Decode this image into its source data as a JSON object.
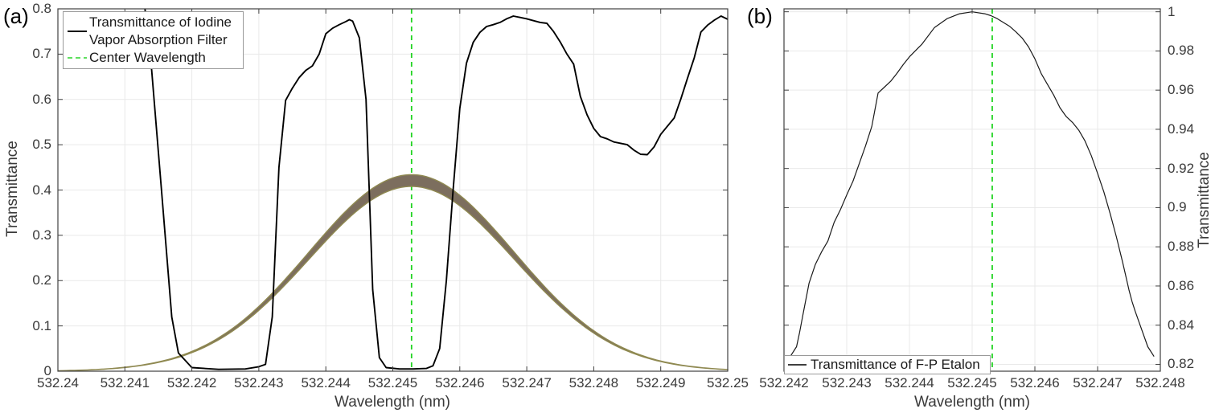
{
  "panels": {
    "a": {
      "tag": "(a)",
      "xlabel": "Wavelength (nm)",
      "ylabel": "Transmittance",
      "legend": [
        "Transmittance of Iodine",
        "Vapor Absorption Filter",
        "Center Wavelength"
      ]
    },
    "b": {
      "tag": "(b)",
      "xlabel": "Wavelength (nm)",
      "ylabel": "Transmittance",
      "legend": [
        "Transmittance of F-P Etalon"
      ]
    }
  },
  "colors": {
    "iodine_curve": "#000000",
    "etalon_curve": "#1a1a1a",
    "center_wavelength_green": "#22d422",
    "legend_green_sample": "#5fdf5f",
    "etalon_sample_gray": "#3f3f3f",
    "band_fill": "#7c6e5e",
    "band_edge": "#8f8951",
    "grid": "#e9e9e9",
    "axis": "#404040"
  },
  "chart_data": [
    {
      "type": "line",
      "panel": "(a)",
      "title": "",
      "xlabel": "Wavelength (nm)",
      "ylabel": "Transmittance",
      "xlim": [
        532.24,
        532.25
      ],
      "ylim": [
        0,
        0.8
      ],
      "grid": true,
      "legend_position": "top-left",
      "xticks": [
        532.24,
        532.241,
        532.242,
        532.243,
        532.244,
        532.245,
        532.246,
        532.247,
        532.248,
        532.249,
        532.25
      ],
      "xtick_labels": [
        "532.24",
        "532.241",
        "532.242",
        "532.243",
        "532.244",
        "532.245",
        "532.246",
        "532.247",
        "532.248",
        "532.249",
        "532.25"
      ],
      "yticks": [
        0,
        0.1,
        0.2,
        0.3,
        0.4,
        0.5,
        0.6,
        0.7,
        0.8
      ],
      "ytick_labels": [
        "0",
        "0.1",
        "0.2",
        "0.3",
        "0.4",
        "0.5",
        "0.6",
        "0.7",
        "0.8"
      ],
      "series": [
        {
          "name": "Center Wavelength",
          "type": "vline",
          "x": 532.24528,
          "color": "#22d422",
          "dash": [
            6,
            5
          ],
          "width": 1.8
        },
        {
          "name": "Laser spectral band (unlabeled)",
          "type": "gaussian-band",
          "center": 532.24528,
          "sigma": 0.00153,
          "peak_top": 0.434,
          "peak_bottom": 0.408,
          "fill": "#7c6e5e",
          "edge": "#8f8951"
        },
        {
          "name": "Transmittance of Iodine Vapor Absorption Filter",
          "type": "line",
          "color": "#000000",
          "width": 1.9,
          "points": [
            [
              532.2413,
              0.8
            ],
            [
              532.2414,
              0.665
            ],
            [
              532.24155,
              0.394
            ],
            [
              532.2417,
              0.12
            ],
            [
              532.2418,
              0.04
            ],
            [
              532.242,
              0.008
            ],
            [
              532.2424,
              0.004
            ],
            [
              532.2428,
              0.005
            ],
            [
              532.243,
              0.01
            ],
            [
              532.2431,
              0.015
            ],
            [
              532.2432,
              0.12
            ],
            [
              532.2433,
              0.45
            ],
            [
              532.2434,
              0.598
            ],
            [
              532.2435,
              0.625
            ],
            [
              532.2436,
              0.648
            ],
            [
              532.2437,
              0.664
            ],
            [
              532.2438,
              0.674
            ],
            [
              532.2439,
              0.7
            ],
            [
              532.244,
              0.745
            ],
            [
              532.2441,
              0.757
            ],
            [
              532.2442,
              0.765
            ],
            [
              532.2443,
              0.772
            ],
            [
              532.24435,
              0.776
            ],
            [
              532.2444,
              0.773
            ],
            [
              532.2445,
              0.736
            ],
            [
              532.2446,
              0.6
            ],
            [
              532.24465,
              0.394
            ],
            [
              532.2447,
              0.18
            ],
            [
              532.2448,
              0.03
            ],
            [
              532.2449,
              0.008
            ],
            [
              532.2451,
              0.005
            ],
            [
              532.2453,
              0.005
            ],
            [
              532.2455,
              0.006
            ],
            [
              532.2456,
              0.012
            ],
            [
              532.2457,
              0.05
            ],
            [
              532.2458,
              0.2
            ],
            [
              532.2459,
              0.4
            ],
            [
              532.246,
              0.58
            ],
            [
              532.2461,
              0.68
            ],
            [
              532.2462,
              0.726
            ],
            [
              532.2463,
              0.748
            ],
            [
              532.2464,
              0.761
            ],
            [
              532.2465,
              0.765
            ],
            [
              532.2466,
              0.77
            ],
            [
              532.2467,
              0.778
            ],
            [
              532.2468,
              0.784
            ],
            [
              532.2469,
              0.781
            ],
            [
              532.247,
              0.778
            ],
            [
              532.2471,
              0.774
            ],
            [
              532.2472,
              0.77
            ],
            [
              532.2473,
              0.768
            ],
            [
              532.2474,
              0.75
            ],
            [
              532.2475,
              0.727
            ],
            [
              532.2476,
              0.7
            ],
            [
              532.2477,
              0.678
            ],
            [
              532.2478,
              0.607
            ],
            [
              532.2479,
              0.566
            ],
            [
              532.248,
              0.536
            ],
            [
              532.2481,
              0.518
            ],
            [
              532.2482,
              0.513
            ],
            [
              532.2483,
              0.506
            ],
            [
              532.2485,
              0.5
            ],
            [
              532.2486,
              0.488
            ],
            [
              532.2487,
              0.479
            ],
            [
              532.2488,
              0.478
            ],
            [
              532.2489,
              0.495
            ],
            [
              532.249,
              0.523
            ],
            [
              532.2492,
              0.559
            ],
            [
              532.2493,
              0.601
            ],
            [
              532.2494,
              0.647
            ],
            [
              532.2495,
              0.692
            ],
            [
              532.2496,
              0.749
            ],
            [
              532.2497,
              0.764
            ],
            [
              532.2498,
              0.775
            ],
            [
              532.2499,
              0.784
            ],
            [
              532.25,
              0.777
            ]
          ]
        }
      ]
    },
    {
      "type": "line",
      "panel": "(b)",
      "title": "",
      "xlabel": "Wavelength (nm)",
      "ylabel": "Transmittance",
      "xlim": [
        532.242,
        532.248
      ],
      "ylim": [
        0.8165,
        1.0015
      ],
      "grid": true,
      "legend_position": "bottom-left",
      "xticks": [
        532.242,
        532.243,
        532.244,
        532.245,
        532.246,
        532.247,
        532.248
      ],
      "xtick_labels": [
        "532.242",
        "532.243",
        "532.244",
        "532.245",
        "532.246",
        "532.247",
        "532.248"
      ],
      "yticks": [
        0.82,
        0.84,
        0.86,
        0.88,
        0.9,
        0.92,
        0.94,
        0.96,
        0.98,
        1
      ],
      "ytick_labels": [
        "0.82",
        "0.84",
        "0.86",
        "0.88",
        "0.9",
        "0.92",
        "0.94",
        "0.96",
        "0.98",
        "1"
      ],
      "series": [
        {
          "name": "Transmittance of F-P Etalon",
          "type": "line",
          "color": "#1a1a1a",
          "width": 1.2,
          "points": [
            [
              532.2421,
              0.824
            ],
            [
              532.2422,
              0.829
            ],
            [
              532.24225,
              0.8365
            ],
            [
              532.2423,
              0.845
            ],
            [
              532.2424,
              0.8615
            ],
            [
              532.2425,
              0.871
            ],
            [
              532.2426,
              0.8775
            ],
            [
              532.2427,
              0.883
            ],
            [
              532.2428,
              0.8925
            ],
            [
              532.2429,
              0.899
            ],
            [
              532.243,
              0.9065
            ],
            [
              532.2431,
              0.9135
            ],
            [
              532.2432,
              0.9225
            ],
            [
              532.2433,
              0.9315
            ],
            [
              532.2434,
              0.9415
            ],
            [
              532.2435,
              0.9585
            ],
            [
              532.2436,
              0.9615
            ],
            [
              532.2437,
              0.9645
            ],
            [
              532.2438,
              0.9685
            ],
            [
              532.2439,
              0.973
            ],
            [
              532.244,
              0.977
            ],
            [
              532.2442,
              0.9835
            ],
            [
              532.2444,
              0.992
            ],
            [
              532.2446,
              0.9965
            ],
            [
              532.2448,
              0.999
            ],
            [
              532.245,
              1.0
            ],
            [
              532.2452,
              0.999
            ],
            [
              532.2453,
              0.998
            ],
            [
              532.2454,
              0.9965
            ],
            [
              532.2456,
              0.9925
            ],
            [
              532.2457,
              0.9897
            ],
            [
              532.2458,
              0.9865
            ],
            [
              532.2459,
              0.982
            ],
            [
              532.246,
              0.976
            ],
            [
              532.2461,
              0.9685
            ],
            [
              532.2462,
              0.963
            ],
            [
              532.2463,
              0.9575
            ],
            [
              532.2464,
              0.951
            ],
            [
              532.2465,
              0.9465
            ],
            [
              532.2466,
              0.9435
            ],
            [
              532.2467,
              0.9395
            ],
            [
              532.2468,
              0.934
            ],
            [
              532.2469,
              0.9265
            ],
            [
              532.247,
              0.9175
            ],
            [
              532.2471,
              0.908
            ],
            [
              532.2472,
              0.897
            ],
            [
              532.2473,
              0.885
            ],
            [
              532.2474,
              0.872
            ],
            [
              532.2475,
              0.858
            ],
            [
              532.24755,
              0.852
            ],
            [
              532.2476,
              0.847
            ],
            [
              532.2477,
              0.838
            ],
            [
              532.2478,
              0.829
            ],
            [
              532.2479,
              0.824
            ]
          ]
        },
        {
          "name": "Center Wavelength",
          "type": "vline",
          "x": 532.24532,
          "color": "#22d422",
          "dash": [
            6,
            5
          ],
          "width": 1.8
        }
      ]
    }
  ]
}
